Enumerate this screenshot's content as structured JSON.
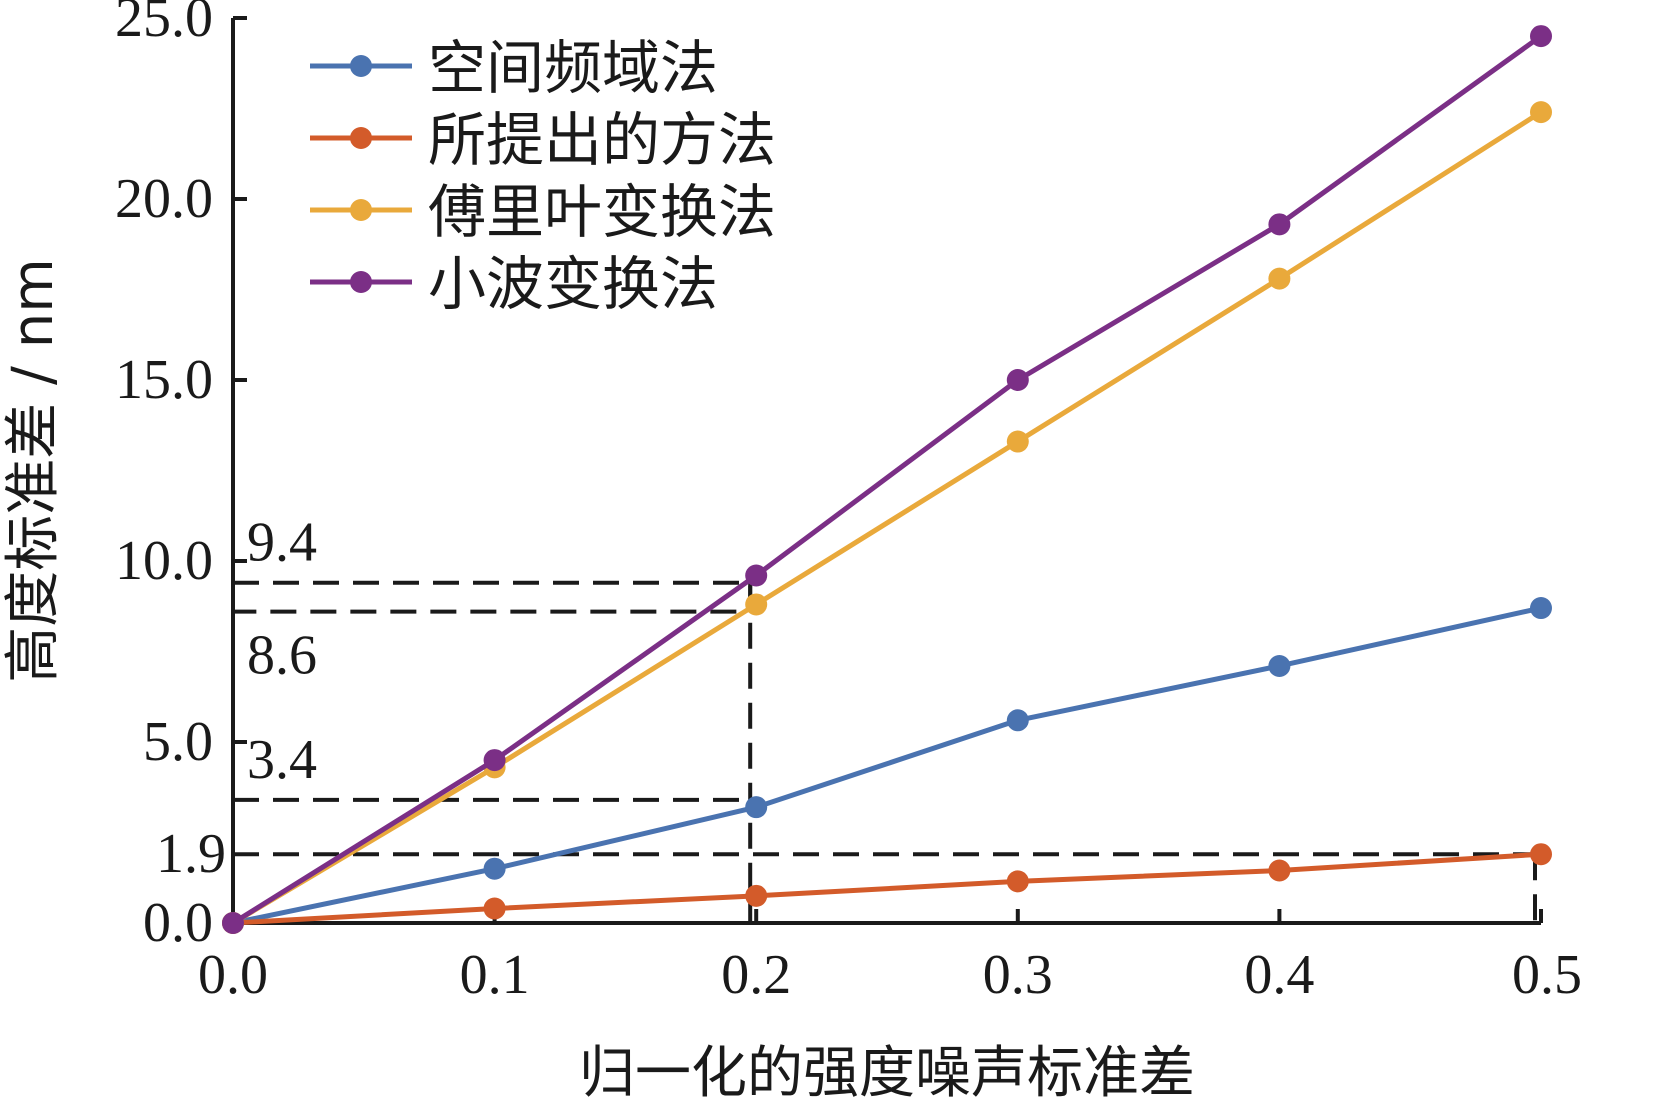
{
  "chart_data": {
    "type": "line",
    "title": "",
    "xlabel": "归一化的强度噪声标准差",
    "ylabel": "高度标准差 / nm",
    "x": [
      0.0,
      0.1,
      0.2,
      0.3,
      0.4,
      0.5
    ],
    "xlim": [
      0.0,
      0.5
    ],
    "ylim": [
      0.0,
      25.0
    ],
    "x_ticks": [
      "0.0",
      "0.1",
      "0.2",
      "0.3",
      "0.4",
      "0.5"
    ],
    "y_ticks": [
      {
        "value": 0.0,
        "label": "0.0"
      },
      {
        "value": 5.0,
        "label": "5.0"
      },
      {
        "value": 10.0,
        "label": "10.0"
      },
      {
        "value": 15.0,
        "label": "15.0"
      },
      {
        "value": 20.0,
        "label": "20.0"
      },
      {
        "value": 25.0,
        "label": "25.0"
      }
    ],
    "series": [
      {
        "name": "空间频域法",
        "color": "#4a73b0",
        "values": [
          0.0,
          1.5,
          3.2,
          5.6,
          7.1,
          8.7
        ]
      },
      {
        "name": "所提出的方法",
        "color": "#d35b2a",
        "values": [
          0.0,
          0.4,
          0.75,
          1.15,
          1.45,
          1.9
        ]
      },
      {
        "name": "傅里叶变换法",
        "color": "#e9a93b",
        "values": [
          0.0,
          4.3,
          8.8,
          13.3,
          17.8,
          22.4
        ]
      },
      {
        "name": "小波变换法",
        "color": "#7b2f86",
        "values": [
          0.0,
          4.5,
          9.6,
          15.0,
          19.3,
          24.5
        ]
      }
    ],
    "annotations": [
      {
        "label": "9.4",
        "value": 9.4
      },
      {
        "label": "8.6",
        "value": 8.6
      },
      {
        "label": "3.4",
        "value": 3.4
      },
      {
        "label": "1.9",
        "value": 1.9
      }
    ],
    "legend_position": "top-left"
  }
}
